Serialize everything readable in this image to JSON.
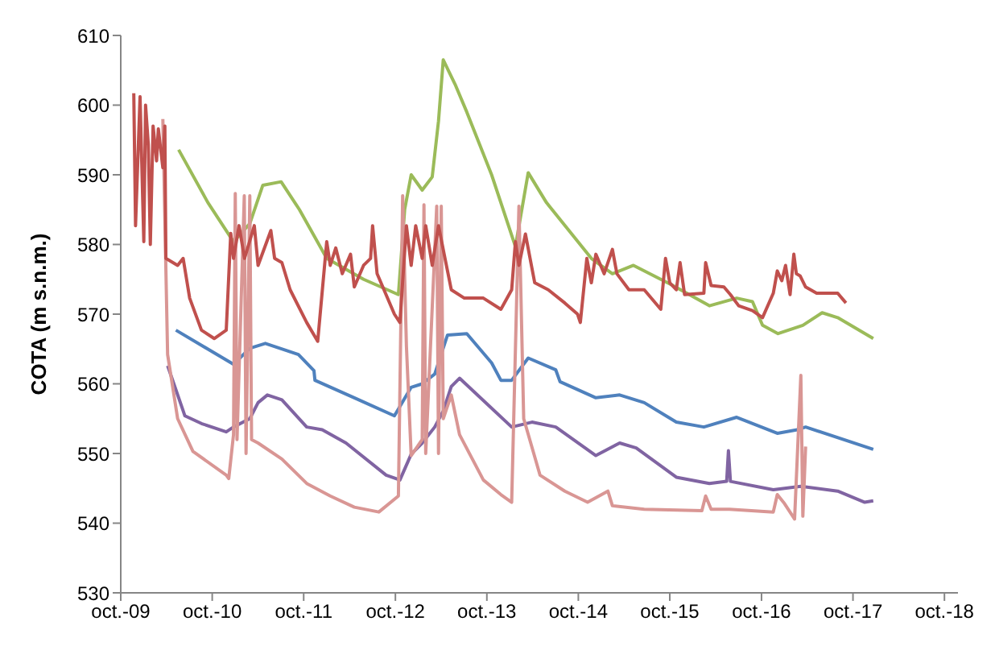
{
  "chart_data": {
    "type": "line",
    "ylabel": "COTA (m s.n.m.)",
    "ylim": [
      530,
      610
    ],
    "yticks": [
      530,
      540,
      550,
      560,
      570,
      580,
      590,
      600,
      610
    ],
    "xlim": [
      "2009-10-01",
      "2018-11-24"
    ],
    "xticks": [
      {
        "value": "2009-10-01",
        "label": "oct.-09"
      },
      {
        "value": "2010-10-01",
        "label": "oct.-10"
      },
      {
        "value": "2011-10-01",
        "label": "oct.-11"
      },
      {
        "value": "2012-10-01",
        "label": "oct.-12"
      },
      {
        "value": "2013-10-01",
        "label": "oct.-13"
      },
      {
        "value": "2014-10-01",
        "label": "oct.-14"
      },
      {
        "value": "2015-10-01",
        "label": "oct.-15"
      },
      {
        "value": "2016-10-01",
        "label": "oct.-16"
      },
      {
        "value": "2017-10-01",
        "label": "oct.-17"
      },
      {
        "value": "2018-10-01",
        "label": "oct.-18"
      }
    ],
    "grid": false,
    "marker": "none",
    "line_style": "solid",
    "series": [
      {
        "color": "#9bbb59",
        "x": [
          "2010-05-20",
          "2010-09-14",
          "2010-12-25",
          "2011-02-28",
          "2011-04-21",
          "2011-07-03",
          "2011-09-14",
          "2012-01-01",
          "2012-05-27",
          "2012-10-13",
          "2012-11-07",
          "2012-12-03",
          "2013-01-16",
          "2013-02-25",
          "2013-03-22",
          "2013-04-10",
          "2013-05-27",
          "2013-07-13",
          "2013-10-20",
          "2014-01-23",
          "2014-03-15",
          "2014-05-27",
          "2014-11-22",
          "2015-02-14",
          "2015-05-09",
          "2015-10-09",
          "2016-03-07",
          "2016-06-24",
          "2016-08-26",
          "2016-10-05",
          "2016-12-06",
          "2017-03-15",
          "2017-05-31",
          "2017-08-01",
          "2017-12-21"
        ],
        "values": [
          593.6,
          586,
          580.4,
          583,
          588.5,
          589,
          585,
          578,
          575,
          572.8,
          585,
          590,
          587.8,
          589.7,
          597.7,
          606.5,
          603,
          599,
          590,
          579.7,
          590.3,
          586,
          578,
          575.8,
          577,
          574.2,
          571.2,
          572.3,
          571.8,
          568.4,
          567.2,
          568.4,
          570.2,
          569.5,
          566.5
        ]
      },
      {
        "color": "#4f81bd",
        "x": [
          "2010-05-09",
          "2010-12-25",
          "2011-02-28",
          "2011-05-01",
          "2011-09-10",
          "2011-11-11",
          "2011-11-15",
          "2012-04-20",
          "2012-09-27",
          "2012-12-03",
          "2013-01-16",
          "2013-03-07",
          "2013-04-27",
          "2013-07-13",
          "2013-10-20",
          "2013-11-26",
          "2014-01-08",
          "2014-03-15",
          "2014-07-03",
          "2014-07-20",
          "2014-12-10",
          "2015-03-15",
          "2015-06-21",
          "2015-10-27",
          "2016-02-14",
          "2016-06-24",
          "2016-12-03",
          "2017-02-21",
          "2017-03-26",
          "2017-12-21"
        ],
        "values": [
          567.7,
          562.8,
          565.1,
          565.8,
          564.2,
          561.9,
          560.5,
          558,
          555.4,
          559.5,
          560,
          561.4,
          567,
          567.2,
          563,
          560.5,
          560.5,
          563.7,
          562,
          560.3,
          558,
          558.4,
          557.3,
          554.5,
          553.8,
          555.2,
          552.9,
          553.4,
          553.8,
          550.6
        ]
      },
      {
        "color": "#8064a2",
        "x": [
          "2010-04-06",
          "2010-06-14",
          "2010-08-19",
          "2010-11-26",
          "2010-12-25",
          "2011-02-28",
          "2011-04-02",
          "2011-05-09",
          "2011-07-06",
          "2011-10-13",
          "2011-12-14",
          "2012-03-18",
          "2012-08-25",
          "2012-10-19",
          "2012-12-03",
          "2013-01-16",
          "2013-03-07",
          "2013-04-10",
          "2013-05-12",
          "2013-06-14",
          "2014-01-08",
          "2014-03-30",
          "2014-07-03",
          "2014-12-10",
          "2015-03-15",
          "2015-05-20",
          "2015-10-27",
          "2016-03-07",
          "2016-05-15",
          "2016-05-22",
          "2016-05-30",
          "2016-11-17",
          "2017-03-07",
          "2017-08-01",
          "2017-11-17",
          "2017-12-21"
        ],
        "values": [
          562.6,
          555.4,
          554.3,
          553.1,
          553.8,
          555,
          557.3,
          558.4,
          557.7,
          553.8,
          553.4,
          551.5,
          546.9,
          546.2,
          549.9,
          551.5,
          553.8,
          556.1,
          559.6,
          560.8,
          553.8,
          554.5,
          553.8,
          549.7,
          551.5,
          550.8,
          546.6,
          545.7,
          546,
          550.4,
          546,
          544.8,
          545.3,
          544.6,
          543,
          543.2
        ]
      },
      {
        "color": "#d99694",
        "x": [
          "2010-03-18",
          "2010-04-06",
          "2010-05-16",
          "2010-07-16",
          "2010-11-26",
          "2010-12-06",
          "2010-12-25",
          "2011-01-01",
          "2011-01-08",
          "2011-02-06",
          "2011-02-13",
          "2011-02-28",
          "2011-03-07",
          "2011-04-02",
          "2011-07-06",
          "2011-10-13",
          "2012-01-15",
          "2012-04-20",
          "2012-07-27",
          "2012-10-13",
          "2012-10-30",
          "2012-11-14",
          "2012-12-03",
          "2013-01-16",
          "2013-01-23",
          "2013-01-30",
          "2013-03-15",
          "2013-03-22",
          "2013-04-02",
          "2013-04-10",
          "2013-05-12",
          "2013-06-14",
          "2013-09-17",
          "2013-11-26",
          "2014-01-08",
          "2014-02-06",
          "2014-02-25",
          "2014-05-01",
          "2014-08-08",
          "2014-11-07",
          "2015-01-27",
          "2015-02-14",
          "2015-06-21",
          "2016-02-06",
          "2016-02-21",
          "2016-03-14",
          "2016-05-26",
          "2016-11-17",
          "2016-12-03",
          "2017-01-01",
          "2017-02-10",
          "2017-03-07",
          "2017-03-15",
          "2017-03-26"
        ],
        "values": [
          598,
          564.2,
          555,
          550.3,
          546.9,
          546.4,
          552.7,
          587.3,
          552,
          587,
          550,
          587,
          552,
          551.5,
          549.2,
          545.7,
          543.9,
          542.3,
          541.6,
          543.9,
          587,
          565.4,
          549.7,
          552,
          585.7,
          550,
          585.5,
          550,
          585.5,
          555,
          558.4,
          552.7,
          546.2,
          544.1,
          543,
          585.5,
          555,
          546.9,
          544.6,
          543,
          544.6,
          542.5,
          542,
          541.8,
          543.9,
          542,
          542,
          541.6,
          544.1,
          542.8,
          540.6,
          561.2,
          541,
          551
        ]
      },
      {
        "color": "#c0504d",
        "x": [
          "2009-11-22",
          "2009-11-29",
          "2009-12-17",
          "2010-01-01",
          "2010-01-08",
          "2010-01-19",
          "2010-01-27",
          "2010-02-07",
          "2010-02-21",
          "2010-02-28",
          "2010-03-18",
          "2010-03-26",
          "2010-03-30",
          "2010-05-16",
          "2010-06-07",
          "2010-07-03",
          "2010-08-19",
          "2010-10-09",
          "2010-11-26",
          "2010-12-14",
          "2010-12-25",
          "2011-01-16",
          "2011-02-07",
          "2011-03-18",
          "2011-04-02",
          "2011-05-23",
          "2011-06-07",
          "2011-07-06",
          "2011-08-08",
          "2011-10-13",
          "2011-11-26",
          "2012-01-01",
          "2012-01-15",
          "2012-02-06",
          "2012-03-03",
          "2012-04-05",
          "2012-04-20",
          "2012-05-27",
          "2012-06-24",
          "2012-07-02",
          "2012-07-20",
          "2012-09-27",
          "2012-10-19",
          "2012-11-14",
          "2012-12-03",
          "2012-12-21",
          "2013-01-16",
          "2013-01-30",
          "2013-02-25",
          "2013-03-22",
          "2013-04-17",
          "2013-05-12",
          "2013-07-03",
          "2013-09-17",
          "2013-11-26",
          "2014-01-08",
          "2014-01-23",
          "2014-02-06",
          "2014-03-04",
          "2014-04-10",
          "2014-06-03",
          "2014-08-08",
          "2014-09-28",
          "2014-10-09",
          "2014-11-04",
          "2014-11-22",
          "2014-12-10",
          "2015-01-12",
          "2015-02-14",
          "2015-03-04",
          "2015-04-21",
          "2015-06-21",
          "2015-08-26",
          "2015-09-14",
          "2015-10-01",
          "2015-10-27",
          "2015-11-11",
          "2015-11-29",
          "2016-02-14",
          "2016-02-21",
          "2016-03-14",
          "2016-05-04",
          "2016-05-30",
          "2016-07-02",
          "2016-08-26",
          "2016-10-05",
          "2016-11-17",
          "2016-12-03",
          "2016-12-21",
          "2017-01-05",
          "2017-01-23",
          "2017-02-07",
          "2017-02-17",
          "2017-03-04",
          "2017-03-26",
          "2017-05-09",
          "2017-08-01",
          "2017-09-03"
        ],
        "values": [
          601.7,
          582.7,
          601.2,
          580.4,
          600,
          594.3,
          580,
          597,
          592,
          596.6,
          591,
          597,
          578,
          577,
          578,
          572.3,
          567.7,
          566.5,
          567.7,
          581.6,
          578,
          582.7,
          578,
          582.7,
          577,
          582,
          578,
          577.4,
          573.5,
          568.8,
          566.1,
          580.4,
          577,
          579.5,
          575.8,
          578.6,
          573.9,
          577,
          578,
          582.7,
          575.8,
          570,
          568.8,
          582.7,
          577,
          582.7,
          578,
          582.7,
          577,
          582.7,
          578,
          573.5,
          572.3,
          572.3,
          570.7,
          573.5,
          580.4,
          577,
          581.5,
          574.5,
          573.5,
          571.6,
          570,
          568.8,
          578,
          574.5,
          578.6,
          575.8,
          579.3,
          575.8,
          573.5,
          573.5,
          570.7,
          578,
          574.5,
          573.5,
          577.4,
          572.8,
          573,
          577.4,
          574.1,
          573.9,
          572.8,
          571.2,
          570.5,
          569.5,
          573,
          576.2,
          574.8,
          577,
          572.8,
          578.6,
          575.8,
          575.5,
          573.9,
          573,
          573,
          571.6
        ]
      }
    ]
  }
}
